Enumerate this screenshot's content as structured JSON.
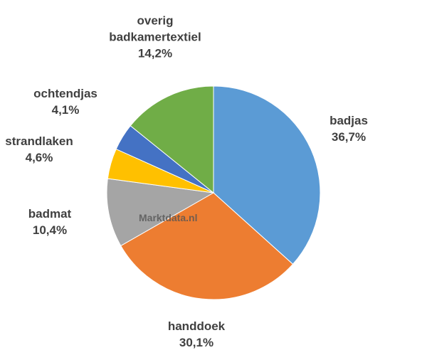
{
  "chart_data": {
    "type": "pie",
    "categories": [
      "badjas",
      "handdoek",
      "badmat",
      "strandlaken",
      "ochtendjas",
      "overig badkamertextiel"
    ],
    "values": [
      36.7,
      30.1,
      10.4,
      4.6,
      4.1,
      14.2
    ],
    "value_labels": [
      "36,7%",
      "30,1%",
      "10,4%",
      "4,6%",
      "4,1%",
      "14,2%"
    ],
    "colors": [
      "#5b9bd5",
      "#ed7d31",
      "#a5a5a5",
      "#ffc000",
      "#4472c4",
      "#70ad47"
    ],
    "watermark": "Marktdata.nl"
  }
}
